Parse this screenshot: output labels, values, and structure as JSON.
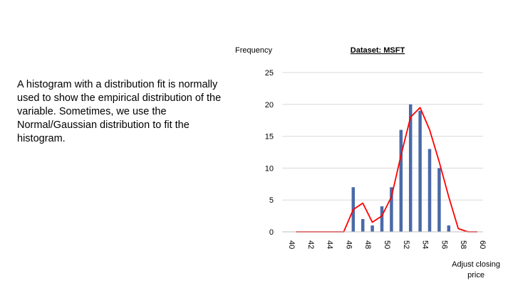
{
  "slide": {
    "body_text": "A histogram with a distribution fit is normally used to show the empirical distribution of the variable. Sometimes, we use the Normal/Gaussian distribution to fit the histogram."
  },
  "chart_data": {
    "type": "bar",
    "title": "Dataset: MSFT",
    "ylabel": "Frequency",
    "xlabel": "Adjust closing price",
    "ylim": [
      0,
      25
    ],
    "yticks": [
      0,
      5,
      10,
      15,
      20,
      25
    ],
    "xlim": [
      40,
      60
    ],
    "xticks": [
      40,
      42,
      44,
      46,
      48,
      50,
      52,
      54,
      56,
      58,
      60
    ],
    "grid": true,
    "series": [
      {
        "type": "bar",
        "color": "#4a6aa8",
        "x": [
          47,
          48,
          49,
          50,
          51,
          52,
          53,
          54,
          55,
          56,
          57
        ],
        "values": [
          7,
          2,
          1,
          4,
          7,
          16,
          20,
          19,
          13,
          10,
          1
        ]
      },
      {
        "type": "line",
        "color": "#ff0000",
        "x": [
          41,
          42,
          43,
          44,
          45,
          46,
          47,
          48,
          49,
          50,
          51,
          52,
          53,
          54,
          55,
          56,
          57,
          58,
          59,
          60
        ],
        "values": [
          0,
          0,
          0,
          0,
          0,
          0,
          3.5,
          4.5,
          1.5,
          2.5,
          5.5,
          12,
          18,
          19.5,
          16,
          11,
          5.5,
          0.5,
          0,
          0
        ]
      }
    ]
  }
}
